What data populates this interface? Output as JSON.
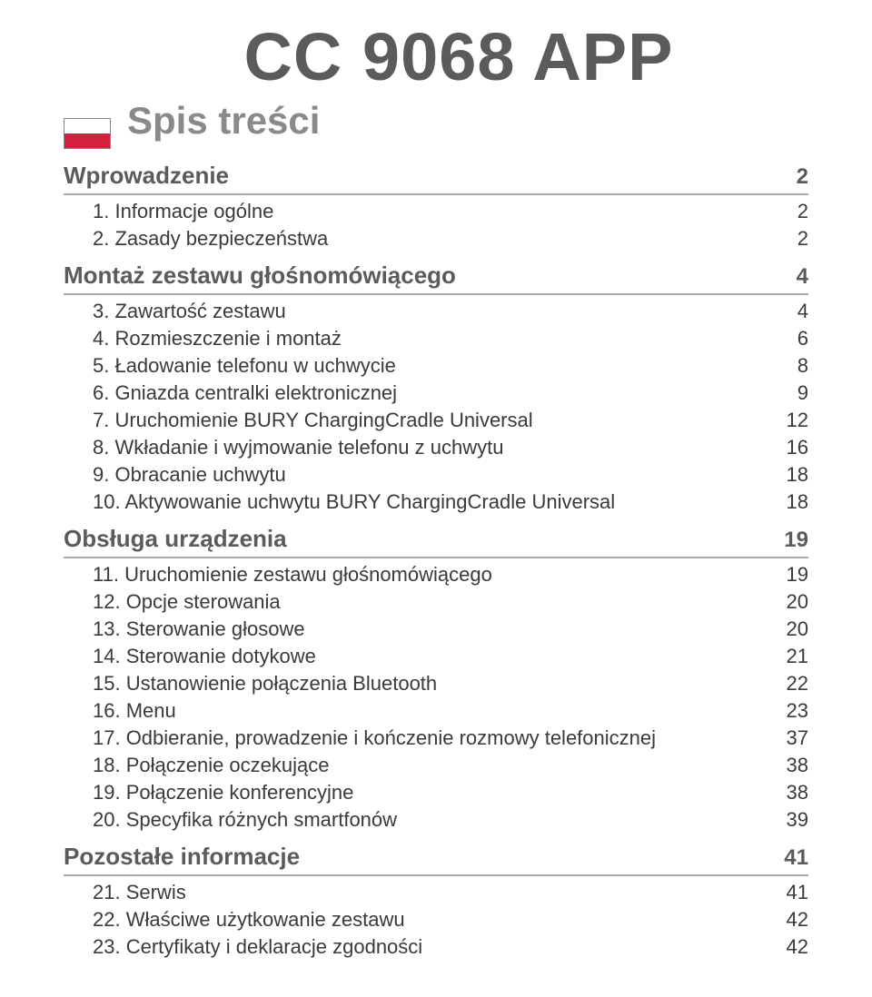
{
  "title": "CC 9068 APP",
  "subtitle": "Spis treści",
  "flag": {
    "top_color": "#ffffff",
    "bottom_color": "#d4213d"
  },
  "sections": [
    {
      "heading": {
        "label": "Wprowadzenie",
        "page": "2"
      },
      "items": [
        {
          "label": "1. Informacje ogólne",
          "page": "2"
        },
        {
          "label": "2. Zasady bezpieczeństwa",
          "page": "2"
        }
      ]
    },
    {
      "heading": {
        "label": "Montaż zestawu głośnomówiącego",
        "page": "4"
      },
      "items": [
        {
          "label": "3. Zawartość zestawu",
          "page": "4"
        },
        {
          "label": "4. Rozmieszczenie i montaż",
          "page": "6"
        },
        {
          "label": "5. Ładowanie telefonu w uchwycie",
          "page": "8"
        },
        {
          "label": "6. Gniazda centralki elektronicznej",
          "page": "9"
        },
        {
          "label": "7. Uruchomienie BURY ChargingCradle Universal",
          "page": "12"
        },
        {
          "label": "8. Wkładanie i wyjmowanie telefonu z uchwytu",
          "page": "16"
        },
        {
          "label": "9. Obracanie uchwytu",
          "page": "18"
        },
        {
          "label": "10. Aktywowanie uchwytu BURY ChargingCradle Universal",
          "page": "18"
        }
      ]
    },
    {
      "heading": {
        "label": "Obsługa urządzenia",
        "page": "19"
      },
      "items": [
        {
          "label": "11. Uruchomienie zestawu głośnomówiącego",
          "page": "19"
        },
        {
          "label": "12. Opcje sterowania",
          "page": "20"
        },
        {
          "label": "13. Sterowanie głosowe",
          "page": "20"
        },
        {
          "label": "14. Sterowanie dotykowe",
          "page": "21"
        },
        {
          "label": "15. Ustanowienie połączenia Bluetooth",
          "page": "22"
        },
        {
          "label": "16. Menu",
          "page": "23"
        },
        {
          "label": "17. Odbieranie, prowadzenie i kończenie rozmowy telefonicznej",
          "page": "37"
        },
        {
          "label": "18. Połączenie oczekujące",
          "page": "38"
        },
        {
          "label": "19. Połączenie konferencyjne",
          "page": "38"
        },
        {
          "label": "20. Specyfika różnych smartfonów",
          "page": "39"
        }
      ]
    },
    {
      "heading": {
        "label": "Pozostałe informacje",
        "page": "41"
      },
      "items": [
        {
          "label": "21. Serwis",
          "page": "41"
        },
        {
          "label": "22. Właściwe użytkowanie zestawu",
          "page": "42"
        },
        {
          "label": "23. Certyfikaty i deklaracje zgodności",
          "page": "42"
        }
      ]
    }
  ]
}
